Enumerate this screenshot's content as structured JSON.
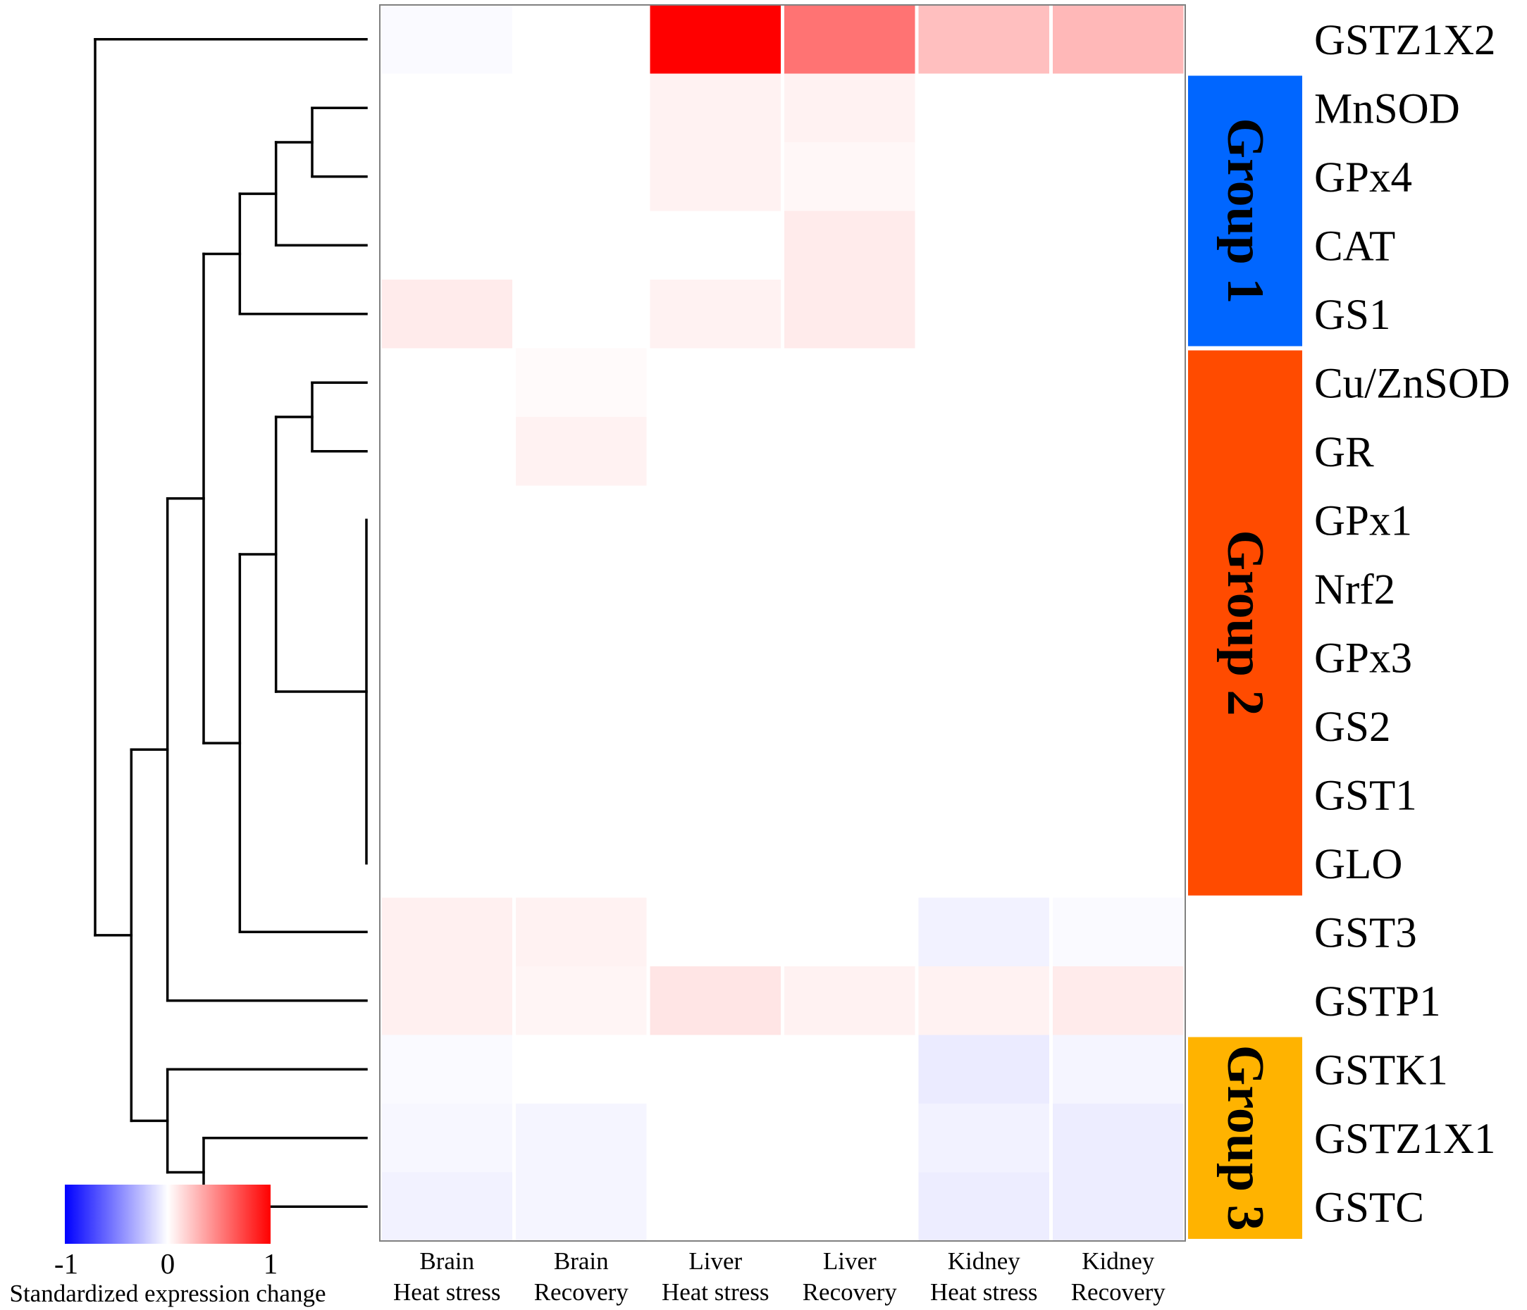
{
  "chart_data": {
    "type": "heatmap",
    "title": "",
    "rows": [
      "GSTZ1X2",
      "MnSOD",
      "GPx4",
      "CAT",
      "GS1",
      "Cu/ZnSOD",
      "GR",
      "GPx1",
      "Nrf2",
      "GPx3",
      "GS2",
      "GST1",
      "GLO",
      "GST3",
      "GSTP1",
      "GSTK1",
      "GSTZ1X1",
      "GSTC"
    ],
    "columns": [
      {
        "tissue": "Brain",
        "condition": "Heat stress"
      },
      {
        "tissue": "Brain",
        "condition": "Recovery"
      },
      {
        "tissue": "Liver",
        "condition": "Heat stress"
      },
      {
        "tissue": "Liver",
        "condition": "Recovery"
      },
      {
        "tissue": "Kidney",
        "condition": "Heat stress"
      },
      {
        "tissue": "Kidney",
        "condition": "Recovery"
      }
    ],
    "values": [
      [
        -0.02,
        0.0,
        1.0,
        0.55,
        0.25,
        0.28
      ],
      [
        0.0,
        0.0,
        0.05,
        0.05,
        0.0,
        0.0
      ],
      [
        0.0,
        0.0,
        0.05,
        0.03,
        0.0,
        0.0
      ],
      [
        0.0,
        0.0,
        0.0,
        0.08,
        0.0,
        0.0
      ],
      [
        0.08,
        0.0,
        0.05,
        0.08,
        0.0,
        0.0
      ],
      [
        0.0,
        0.02,
        0.0,
        0.0,
        0.0,
        0.0
      ],
      [
        0.0,
        0.05,
        0.0,
        0.0,
        0.0,
        0.0
      ],
      [
        0.0,
        0.0,
        0.0,
        0.0,
        0.0,
        0.0
      ],
      [
        0.0,
        0.0,
        0.0,
        0.0,
        0.0,
        0.0
      ],
      [
        0.0,
        0.0,
        0.0,
        0.0,
        0.0,
        0.0
      ],
      [
        0.0,
        0.0,
        0.0,
        0.0,
        0.0,
        0.0
      ],
      [
        0.0,
        0.0,
        0.0,
        0.0,
        0.0,
        0.0
      ],
      [
        0.0,
        0.0,
        0.0,
        0.0,
        0.0,
        0.0
      ],
      [
        0.06,
        0.05,
        0.0,
        0.0,
        -0.05,
        -0.02
      ],
      [
        0.06,
        0.04,
        0.1,
        0.05,
        0.05,
        0.08
      ],
      [
        -0.02,
        0.0,
        0.0,
        0.0,
        -0.08,
        -0.04
      ],
      [
        -0.03,
        -0.04,
        0.0,
        0.0,
        -0.05,
        -0.07
      ],
      [
        -0.05,
        -0.04,
        0.0,
        0.0,
        -0.07,
        -0.07
      ]
    ],
    "value_range": [
      -1,
      1
    ],
    "colors": {
      "low": "#0000ff",
      "mid": "#ffffff",
      "high": "#ff0000"
    },
    "legend": {
      "title": "Standardized expression change",
      "ticks": [
        "-1",
        "0",
        "1"
      ],
      "position": "bottom-left"
    },
    "groups": [
      {
        "label": "Group 1",
        "first_row": 1,
        "last_row": 4,
        "color": "#0066ff"
      },
      {
        "label": "Group 2",
        "first_row": 5,
        "last_row": 12,
        "color": "#ff4b00"
      },
      {
        "label": "Group 3",
        "first_row": 15,
        "last_row": 17,
        "color": "#ffb300"
      }
    ],
    "dendrogram": {
      "side": "left",
      "tree": {
        "c": [
          {
            "r": 0
          },
          {
            "c": [
              {
                "c": [
                  {
                    "c": [
                      {
                        "c": [
                          {
                            "c": [
                              {
                                "c": [
                                  {
                                    "r": 1
                                  },
                                  {
                                    "r": 2
                                  }
                                ]
                              },
                              {
                                "r": 3
                              }
                            ]
                          },
                          {
                            "r": 4
                          }
                        ]
                      },
                      {
                        "c": [
                          {
                            "c": [
                              {
                                "c": [
                                  {
                                    "r": 5
                                  },
                                  {
                                    "r": 6
                                  }
                                ]
                              },
                              {
                                "r": [
                                  7,
                                  8,
                                  9,
                                  10,
                                  11,
                                  12
                                ]
                              }
                            ]
                          },
                          {
                            "r": 13
                          }
                        ]
                      }
                    ]
                  },
                  {
                    "r": 14
                  }
                ]
              },
              {
                "c": [
                  {
                    "r": 15
                  },
                  {
                    "c": [
                      {
                        "r": 16
                      },
                      {
                        "r": 17
                      }
                    ]
                  }
                ]
              }
            ]
          }
        ]
      }
    }
  }
}
